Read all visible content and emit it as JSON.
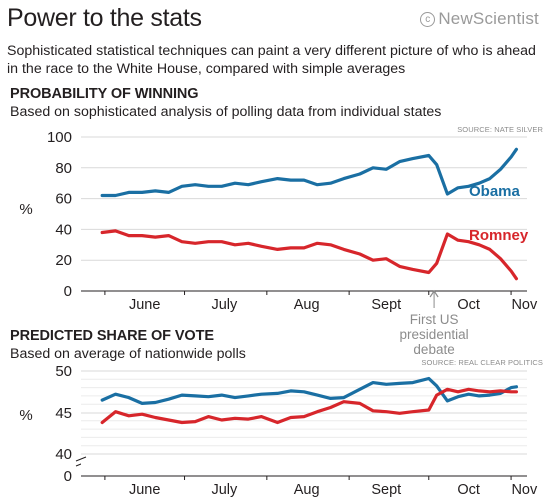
{
  "header": {
    "title": "Power to the stats",
    "brand": "NewScientist",
    "subtitle": "Sophisticated statistical techniques can paint a very different picture of who is ahead in the race to the White House, compared with simple averages"
  },
  "colors": {
    "obama": "#1a6fa3",
    "romney": "#d7262b",
    "grid": "#d9d9d9",
    "annotation": "#8c8c8c"
  },
  "chart_data": [
    {
      "type": "line",
      "title": "PROBABILITY OF WINNING",
      "subtitle": "Based on sophisticated analysis of polling data from individual states",
      "source": "SOURCE: NATE SILVER",
      "ylabel": "%",
      "ylim": [
        0,
        100
      ],
      "yticks": [
        "0",
        "20",
        "40",
        "60",
        "80",
        "100"
      ],
      "xticks": [
        "June",
        "July",
        "Aug",
        "Sept",
        "Oct",
        "Nov"
      ],
      "grid": true,
      "annotation": [
        "First US",
        "presidential",
        "debate"
      ],
      "series": [
        {
          "name": "Obama",
          "x": [
            "May 31",
            "Jun 5",
            "Jun 10",
            "Jun 15",
            "Jun 20",
            "Jun 25",
            "Jun 30",
            "Jul 5",
            "Jul 10",
            "Jul 15",
            "Jul 20",
            "Jul 25",
            "Jul 30",
            "Aug 5",
            "Aug 10",
            "Aug 15",
            "Aug 20",
            "Aug 25",
            "Aug 30",
            "Sep 5",
            "Sep 10",
            "Sep 15",
            "Sep 20",
            "Sep 25",
            "Oct 1",
            "Oct 4",
            "Oct 8",
            "Oct 12",
            "Oct 16",
            "Oct 20",
            "Oct 24",
            "Oct 28",
            "Nov 1",
            "Nov 3"
          ],
          "values": [
            62,
            62,
            64,
            64,
            65,
            64,
            68,
            69,
            68,
            68,
            70,
            69,
            71,
            73,
            72,
            72,
            69,
            70,
            73,
            76,
            80,
            79,
            84,
            86,
            88,
            82,
            63,
            67,
            68,
            70,
            73,
            79,
            87,
            92
          ]
        },
        {
          "name": "Romney",
          "x": [
            "May 31",
            "Jun 5",
            "Jun 10",
            "Jun 15",
            "Jun 20",
            "Jun 25",
            "Jun 30",
            "Jul 5",
            "Jul 10",
            "Jul 15",
            "Jul 20",
            "Jul 25",
            "Jul 30",
            "Aug 5",
            "Aug 10",
            "Aug 15",
            "Aug 20",
            "Aug 25",
            "Aug 30",
            "Sep 5",
            "Sep 10",
            "Sep 15",
            "Sep 20",
            "Sep 25",
            "Oct 1",
            "Oct 4",
            "Oct 8",
            "Oct 12",
            "Oct 16",
            "Oct 20",
            "Oct 24",
            "Oct 28",
            "Nov 1",
            "Nov 3"
          ],
          "values": [
            38,
            39,
            36,
            36,
            35,
            36,
            32,
            31,
            32,
            32,
            30,
            31,
            29,
            27,
            28,
            28,
            31,
            30,
            27,
            24,
            20,
            21,
            16,
            14,
            12,
            18,
            37,
            33,
            32,
            30,
            27,
            21,
            13,
            8
          ]
        }
      ]
    },
    {
      "type": "line",
      "title": "PREDICTED SHARE OF VOTE",
      "subtitle": "Based on average of nationwide polls",
      "source": "SOURCE: REAL CLEAR POLITICS",
      "ylabel": "%",
      "ylim": [
        0,
        50
      ],
      "yticks": [
        "0",
        "40",
        "45",
        "50"
      ],
      "axis_break": true,
      "xticks": [
        "June",
        "July",
        "Aug",
        "Sept",
        "Oct",
        "Nov"
      ],
      "grid": true,
      "series": [
        {
          "name": "Obama",
          "x": [
            "May 31",
            "Jun 5",
            "Jun 10",
            "Jun 15",
            "Jun 20",
            "Jun 25",
            "Jun 30",
            "Jul 5",
            "Jul 10",
            "Jul 15",
            "Jul 20",
            "Jul 25",
            "Jul 30",
            "Aug 5",
            "Aug 10",
            "Aug 15",
            "Aug 20",
            "Aug 25",
            "Aug 30",
            "Sep 5",
            "Sep 10",
            "Sep 15",
            "Sep 20",
            "Sep 25",
            "Oct 1",
            "Oct 4",
            "Oct 8",
            "Oct 12",
            "Oct 16",
            "Oct 20",
            "Oct 24",
            "Oct 28",
            "Nov 1",
            "Nov 3"
          ],
          "values": [
            46.5,
            47.2,
            46.8,
            46.1,
            46.2,
            46.6,
            47.1,
            47,
            46.9,
            47.1,
            46.8,
            47,
            47.2,
            47.3,
            47.6,
            47.5,
            47.1,
            46.7,
            46.8,
            47.8,
            48.6,
            48.4,
            48.5,
            48.6,
            49.1,
            48.2,
            46.4,
            46.9,
            47.2,
            47,
            47.1,
            47.3,
            48,
            48.1
          ]
        },
        {
          "name": "Romney",
          "x": [
            "May 31",
            "Jun 5",
            "Jun 10",
            "Jun 15",
            "Jun 20",
            "Jun 25",
            "Jun 30",
            "Jul 5",
            "Jul 10",
            "Jul 15",
            "Jul 20",
            "Jul 25",
            "Jul 30",
            "Aug 5",
            "Aug 10",
            "Aug 15",
            "Aug 20",
            "Aug 25",
            "Aug 30",
            "Sep 5",
            "Sep 10",
            "Sep 15",
            "Sep 20",
            "Sep 25",
            "Oct 1",
            "Oct 4",
            "Oct 8",
            "Oct 12",
            "Oct 16",
            "Oct 20",
            "Oct 24",
            "Oct 28",
            "Nov 1",
            "Nov 3"
          ],
          "values": [
            43.8,
            45.1,
            44.6,
            44.8,
            44.4,
            44.1,
            43.8,
            43.9,
            44.5,
            44.1,
            44.3,
            44.2,
            44.5,
            43.8,
            44.4,
            44.5,
            45.1,
            45.6,
            46.3,
            46.1,
            45.2,
            45.1,
            44.9,
            45.1,
            45.3,
            47.1,
            47.8,
            47.5,
            47.8,
            47.6,
            47.5,
            47.6,
            47.5,
            47.5
          ]
        }
      ]
    }
  ]
}
